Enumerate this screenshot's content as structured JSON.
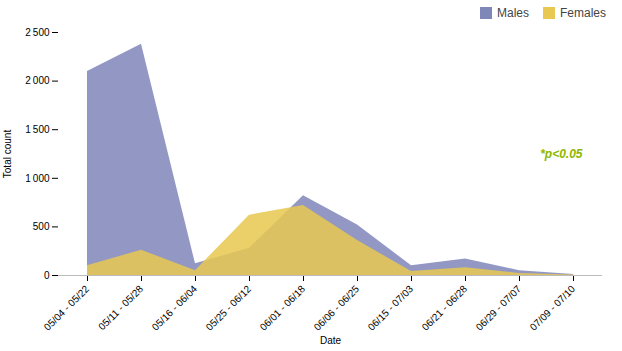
{
  "chart_data": {
    "type": "area",
    "xlabel": "Date",
    "ylabel": "Total count",
    "categories": [
      "05/04 - 05/22",
      "05/11 - 05/28",
      "05/16 - 06/04",
      "05/25 - 06/12",
      "06/01 - 06/18",
      "06/06 - 06/25",
      "06/15 - 07/03",
      "06/21 - 06/28",
      "06/29 - 07/07",
      "07/09 - 07/10"
    ],
    "series": [
      {
        "name": "Males",
        "color": "#7f86b8",
        "values": [
          2100,
          2380,
          120,
          280,
          820,
          520,
          100,
          170,
          50,
          10
        ]
      },
      {
        "name": "Females",
        "color": "#e8c850",
        "values": [
          100,
          260,
          50,
          620,
          720,
          360,
          40,
          80,
          20,
          5
        ]
      }
    ],
    "ylim": [
      0,
      2500
    ],
    "yticks": [
      0,
      500,
      {
        "value": 1000,
        "label": "1 000"
      },
      {
        "value": 1500,
        "label": "1 500"
      },
      {
        "value": 2000,
        "label": "2 000"
      },
      {
        "value": 2500,
        "label": "2 500"
      }
    ],
    "grid": false,
    "stacked": false,
    "legend": "upper right",
    "annotations": [
      {
        "text": "*p<0.05",
        "color": "#8db800"
      }
    ]
  }
}
